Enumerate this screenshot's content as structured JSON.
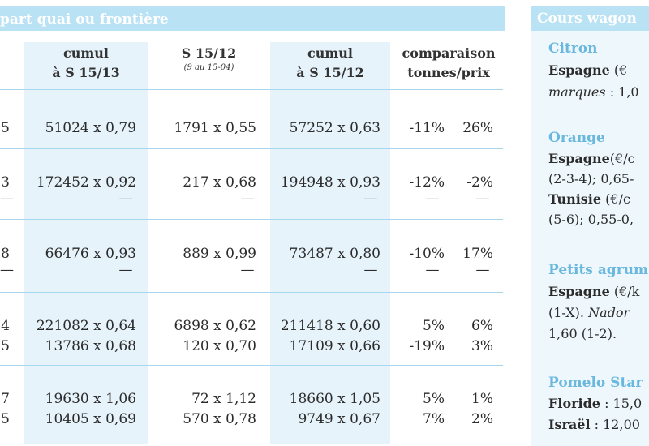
{
  "left_header_title": "part quai ou frontière",
  "columns": [
    {
      "label": "cumul",
      "label2": "à S 15/13",
      "sub": ""
    },
    {
      "label": "S 15/12",
      "label2": "",
      "sub": "(9 au 15-04)"
    },
    {
      "label": "cumul",
      "label2": "à S 15/12",
      "sub": ""
    },
    {
      "label": "comparaison",
      "label2": "tonnes/prix",
      "sub": ""
    }
  ],
  "row_fragments": [
    "5",
    "3",
    "8",
    "4",
    "5",
    "7",
    "5"
  ],
  "rows": [
    {
      "c1": "51024 x 0,79",
      "c2": "1791 x 0,55",
      "c3": "57252 x 0,63",
      "t": "-11%",
      "p": "26%"
    },
    {
      "c1": "172452 x 0,92",
      "c2": "217 x 0,68",
      "c3": "194948 x 0,93",
      "t": "-12%",
      "p": "-2%"
    },
    {
      "c1": "66476 x 0,93",
      "c2": "889 x 0,99",
      "c3": "73487 x 0,80",
      "t": "-10%",
      "p": "17%"
    },
    {
      "c1": "221082 x 0,64",
      "c2": "6898 x 0,62",
      "c3": "211418 x 0,60",
      "t": "5%",
      "p": "6%"
    },
    {
      "c1": "13786 x 0,68",
      "c2": "120 x 0,70",
      "c3": "17109 x 0,66",
      "t": "-19%",
      "p": "3%"
    },
    {
      "c1": "19630 x 1,06",
      "c2": "72 x 1,12",
      "c3": "18660 x 1,05",
      "t": "5%",
      "p": "1%"
    },
    {
      "c1": "10405 x 0,69",
      "c2": "570 x 0,78",
      "c3": "9749 x 0,67",
      "t": "7%",
      "p": "2%"
    }
  ],
  "dash": "—",
  "right_panel": {
    "title": "Cours wagon",
    "citron_head": "Citron",
    "citron_l1_bold": "Espagne",
    "citron_l1_rest": "(€",
    "citron_l2_italic": "marques",
    "citron_l2_rest": ": 1,0",
    "orange_head": "Orange",
    "orange_l1_bold": "Espagne",
    "orange_l1_rest": "(€/c",
    "orange_l2": "(2-3-4); 0,65-",
    "orange_l3_bold": "Tunisie",
    "orange_l3_rest": "(€/c",
    "orange_l4": "(5-6); 0,55-0,",
    "petits_head": "Petits agrum",
    "petits_l1_bold": "Espagne",
    "petits_l1_rest": "(€/k",
    "petits_l2": "(1-X).",
    "petits_l2_italic": "Nador",
    "petits_l3": "1,60 (1-2).",
    "pomelo_head": "Pomelo Star",
    "pomelo_l1_bold": "Floride",
    "pomelo_l1_rest": ": 15,0",
    "pomelo_l2_bold": "Israël",
    "pomelo_l2_rest": ": 12,00"
  }
}
